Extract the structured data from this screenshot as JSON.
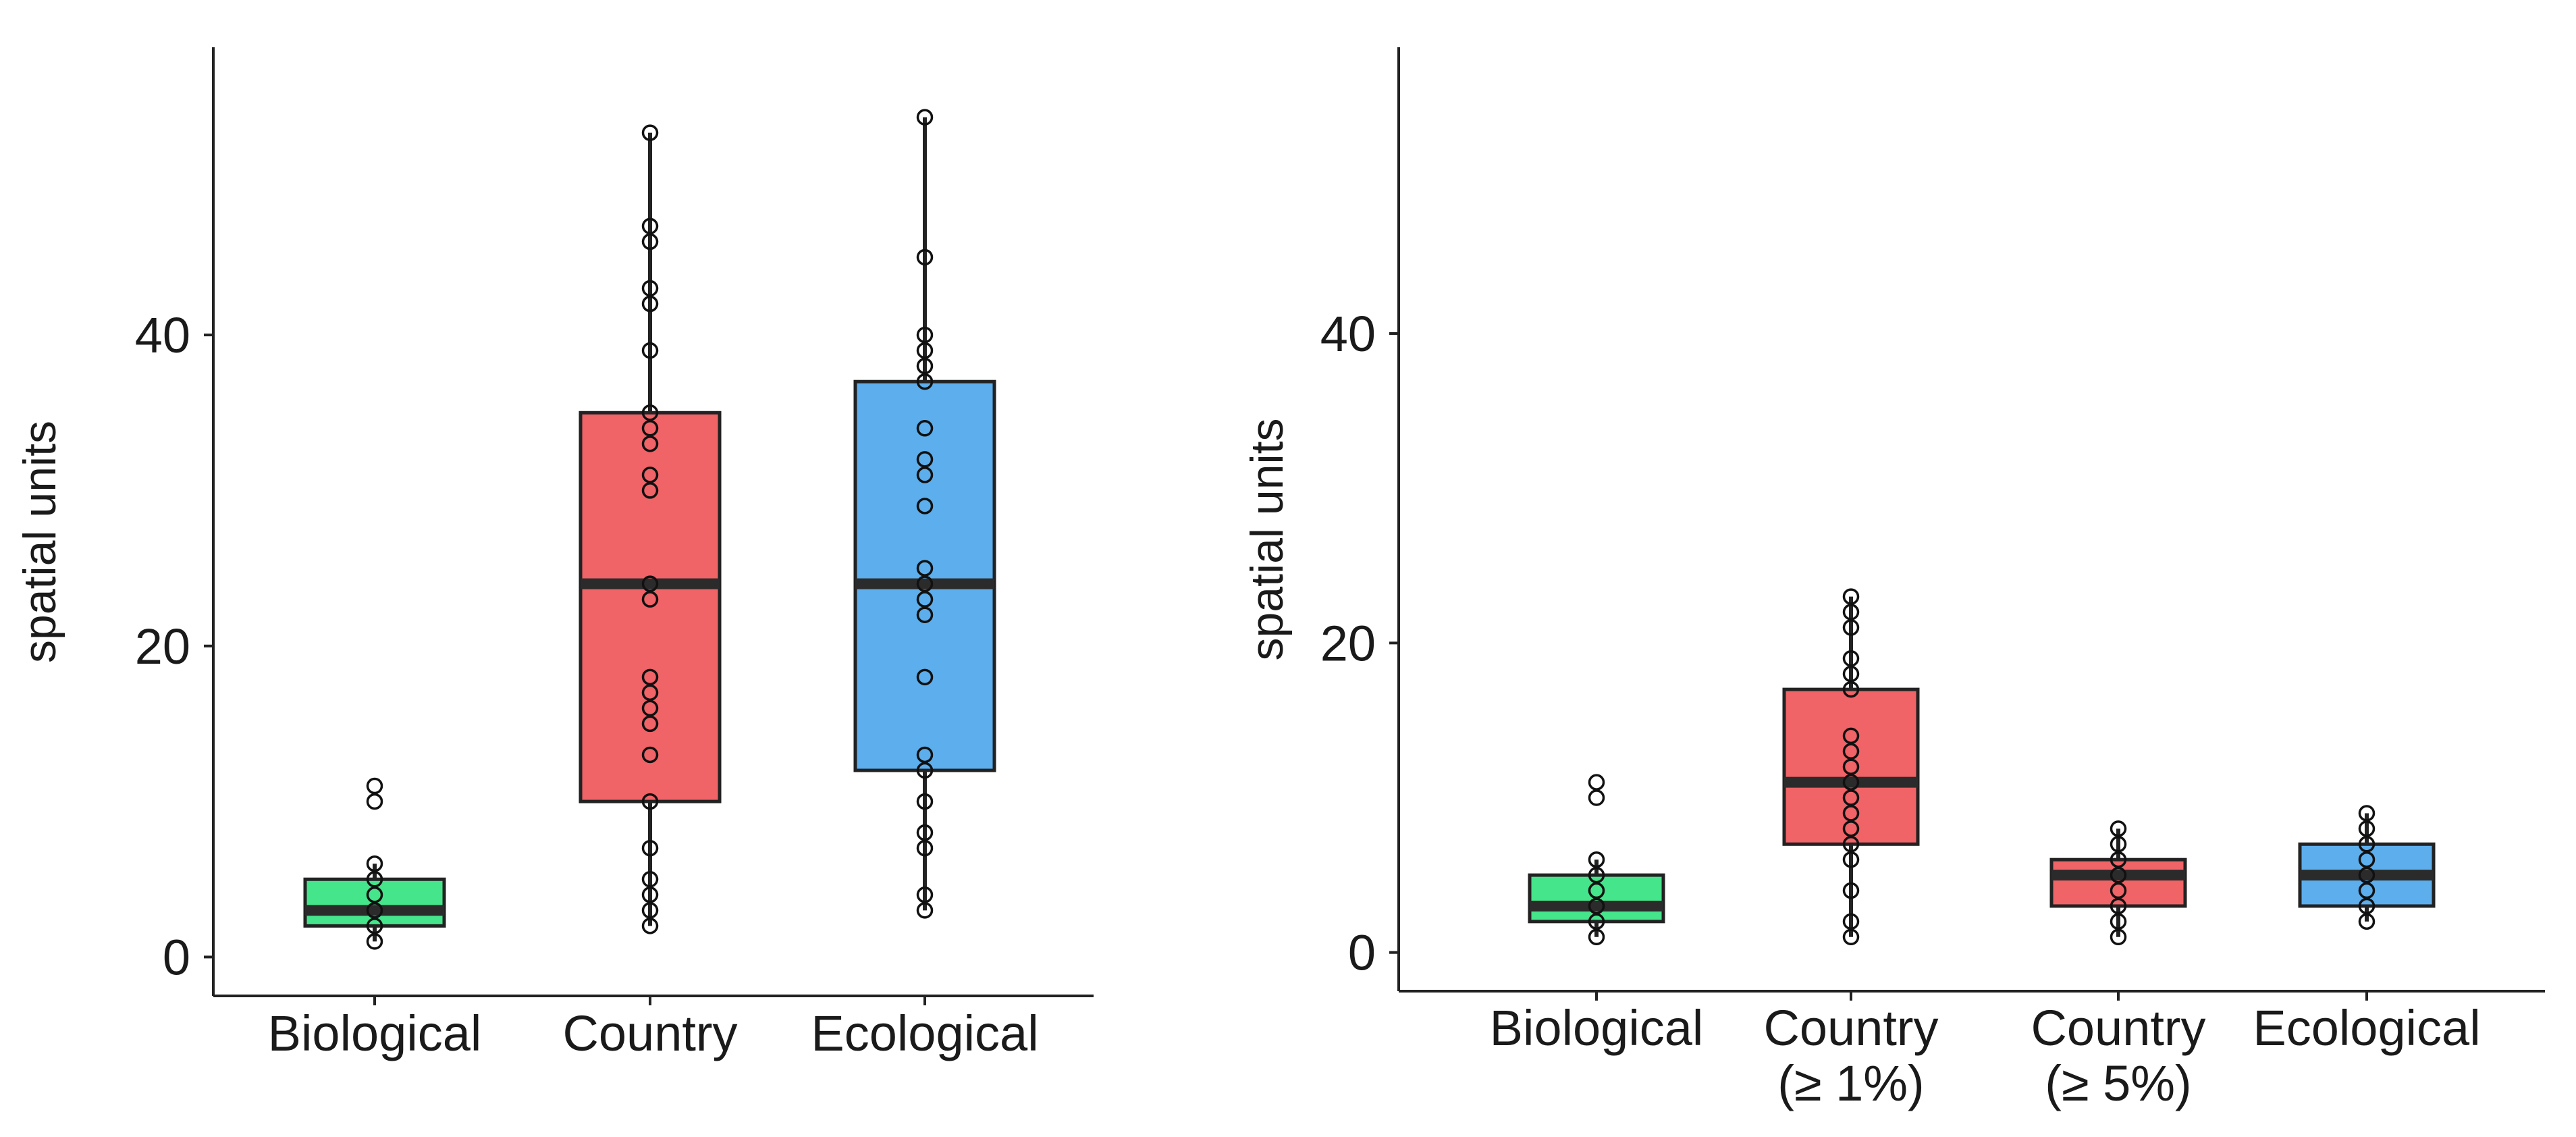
{
  "chart_data": [
    {
      "type": "box",
      "title": "",
      "xlabel": "",
      "ylabel": "spatial units",
      "ylim": [
        -2.5,
        58.5
      ],
      "yticks": [
        0,
        20,
        40
      ],
      "grid": false,
      "legend": "none",
      "categories": [
        {
          "label": [
            "Biological"
          ],
          "color": "#45e58b",
          "box": {
            "q1": 2,
            "median": 3,
            "q3": 5,
            "whisker_low": 1,
            "whisker_high": 6
          },
          "points": [
            1,
            2,
            3,
            4,
            5,
            6,
            10,
            11
          ]
        },
        {
          "label": [
            "Country"
          ],
          "color": "#f06367",
          "box": {
            "q1": 10,
            "median": 24,
            "q3": 35,
            "whisker_low": 2,
            "whisker_high": 53
          },
          "points": [
            2,
            3,
            4,
            5,
            7,
            10,
            13,
            15,
            16,
            17,
            18,
            23,
            24,
            30,
            31,
            33,
            34,
            35,
            39,
            42,
            43,
            46,
            47,
            53
          ]
        },
        {
          "label": [
            "Ecological"
          ],
          "color": "#5caeed",
          "box": {
            "q1": 12,
            "median": 24,
            "q3": 37,
            "whisker_low": 3,
            "whisker_high": 54
          },
          "points": [
            3,
            4,
            7,
            8,
            10,
            12,
            13,
            18,
            22,
            23,
            24,
            25,
            29,
            31,
            32,
            34,
            37,
            38,
            39,
            40,
            45,
            54
          ]
        }
      ]
    },
    {
      "type": "box",
      "title": "",
      "xlabel": "",
      "ylabel": "spatial units",
      "ylim": [
        -2.5,
        58.5
      ],
      "yticks": [
        0,
        20,
        40
      ],
      "grid": false,
      "legend": "none",
      "categories": [
        {
          "label": [
            "Biological"
          ],
          "color": "#45e58b",
          "box": {
            "q1": 2,
            "median": 3,
            "q3": 5,
            "whisker_low": 1,
            "whisker_high": 6
          },
          "points": [
            1,
            2,
            3,
            4,
            5,
            6,
            10,
            11
          ]
        },
        {
          "label": [
            "Country",
            "(≥ 1%)"
          ],
          "color": "#f06367",
          "box": {
            "q1": 7,
            "median": 11,
            "q3": 17,
            "whisker_low": 1,
            "whisker_high": 23
          },
          "points": [
            1,
            2,
            4,
            6,
            7,
            8,
            9,
            10,
            11,
            12,
            13,
            14,
            17,
            18,
            19,
            21,
            22,
            23
          ]
        },
        {
          "label": [
            "Country",
            "(≥ 5%)"
          ],
          "color": "#f06367",
          "box": {
            "q1": 3,
            "median": 5,
            "q3": 6,
            "whisker_low": 1,
            "whisker_high": 8
          },
          "points": [
            1,
            2,
            3,
            4,
            5,
            6,
            7,
            8
          ]
        },
        {
          "label": [
            "Ecological"
          ],
          "color": "#5caeed",
          "box": {
            "q1": 3,
            "median": 5,
            "q3": 7,
            "whisker_low": 2,
            "whisker_high": 9
          },
          "points": [
            2,
            3,
            4,
            5,
            6,
            7,
            8,
            9
          ]
        }
      ]
    }
  ]
}
